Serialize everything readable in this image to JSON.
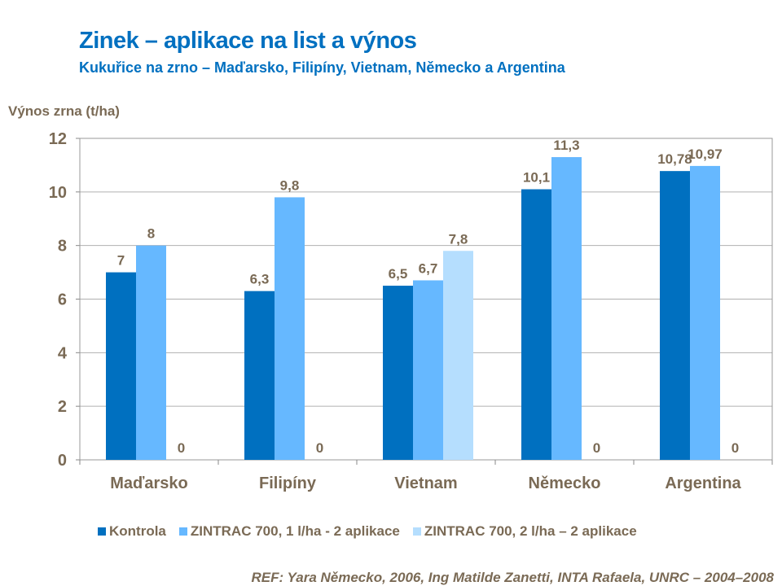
{
  "chart_data": {
    "type": "bar",
    "title": "Zinek – aplikace na list a výnos",
    "subtitle": "Kukuřice na zrno – Maďarsko, Filipíny,  Vietnam, Německo a Argentina",
    "ylabel": "Výnos zrna (t/ha)",
    "xlabel": "",
    "ylim": [
      0,
      12
    ],
    "yticks": [
      0,
      2,
      4,
      6,
      8,
      10,
      12
    ],
    "grid": true,
    "legend_position": "bottom",
    "categories": [
      "Maďarsko",
      "Filipíny",
      "Vietnam",
      "Německo",
      "Argentina"
    ],
    "series": [
      {
        "name": "Kontrola",
        "color": "#0070c0",
        "values": [
          7,
          6.3,
          6.5,
          10.1,
          10.78
        ],
        "labels": [
          "7",
          "6,3",
          "6,5",
          "10,1",
          "10,78"
        ]
      },
      {
        "name": "ZINTRAC 700, 1 l/ha - 2 aplikace",
        "color": "#66b8ff",
        "values": [
          8,
          9.8,
          6.7,
          11.3,
          10.97
        ],
        "labels": [
          "8",
          "9,8",
          "6,7",
          "11,3",
          "10,97"
        ]
      },
      {
        "name": "ZINTRAC  700, 2 l/ha – 2 aplikace",
        "color": "#b5defe",
        "values": [
          0,
          0,
          7.8,
          0,
          0
        ],
        "labels": [
          "0",
          "0",
          "7,8",
          "0",
          "0"
        ]
      }
    ]
  },
  "reference": "REF: Yara Německo, 2006, Ing Matilde Zanetti, INTA Rafaela, UNRC – 2004–2008"
}
